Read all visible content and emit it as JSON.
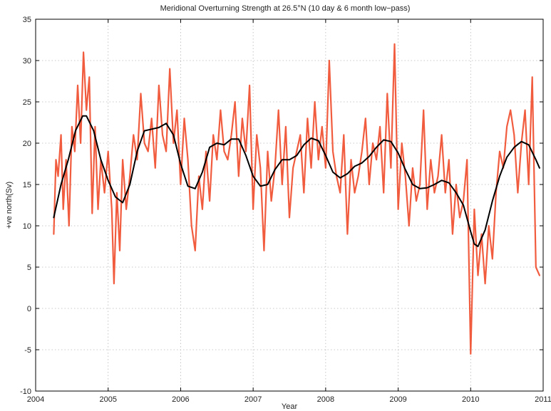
{
  "chart_data": {
    "type": "line",
    "title": "Meridional Overturning Strength at 26.5°N (10 day & 6 month low−pass)",
    "xlabel": "Year",
    "ylabel": "+ve north(Sv)",
    "xlim": [
      2004,
      2011
    ],
    "ylim": [
      -10,
      35
    ],
    "x_ticks": [
      "2004",
      "2005",
      "2006",
      "2007",
      "2008",
      "2009",
      "2010",
      "2011"
    ],
    "y_ticks": [
      "-10",
      "-5",
      "0",
      "5",
      "10",
      "15",
      "20",
      "25",
      "30",
      "35"
    ],
    "grid": true,
    "series": [
      {
        "style": "10-day",
        "color": "#f04a2a",
        "x": [
          2004.25,
          2004.28,
          2004.31,
          2004.35,
          2004.38,
          2004.42,
          2004.46,
          2004.5,
          2004.54,
          2004.58,
          2004.62,
          2004.66,
          2004.7,
          2004.74,
          2004.78,
          2004.82,
          2004.86,
          2004.9,
          2004.95,
          2005.0,
          2005.05,
          2005.08,
          2005.12,
          2005.16,
          2005.2,
          2005.25,
          2005.3,
          2005.35,
          2005.4,
          2005.45,
          2005.5,
          2005.55,
          2005.6,
          2005.65,
          2005.7,
          2005.75,
          2005.8,
          2005.85,
          2005.9,
          2005.95,
          2006.0,
          2006.05,
          2006.1,
          2006.15,
          2006.2,
          2006.25,
          2006.3,
          2006.35,
          2006.4,
          2006.45,
          2006.5,
          2006.55,
          2006.6,
          2006.65,
          2006.7,
          2006.75,
          2006.8,
          2006.85,
          2006.9,
          2006.95,
          2007.0,
          2007.05,
          2007.1,
          2007.15,
          2007.2,
          2007.25,
          2007.3,
          2007.35,
          2007.4,
          2007.45,
          2007.5,
          2007.55,
          2007.6,
          2007.65,
          2007.7,
          2007.75,
          2007.8,
          2007.85,
          2007.9,
          2007.95,
          2008.0,
          2008.05,
          2008.1,
          2008.15,
          2008.2,
          2008.25,
          2008.3,
          2008.35,
          2008.4,
          2008.45,
          2008.5,
          2008.55,
          2008.6,
          2008.65,
          2008.7,
          2008.75,
          2008.8,
          2008.85,
          2008.9,
          2008.95,
          2009.0,
          2009.05,
          2009.1,
          2009.15,
          2009.2,
          2009.25,
          2009.3,
          2009.35,
          2009.4,
          2009.45,
          2009.5,
          2009.55,
          2009.6,
          2009.65,
          2009.7,
          2009.75,
          2009.8,
          2009.85,
          2009.9,
          2009.95,
          2010.0,
          2010.05,
          2010.1,
          2010.15,
          2010.2,
          2010.25,
          2010.3,
          2010.35,
          2010.4,
          2010.45,
          2010.5,
          2010.55,
          2010.6,
          2010.65,
          2010.7,
          2010.75,
          2010.8,
          2010.85,
          2010.9,
          2010.95
        ],
        "y": [
          9,
          18,
          16,
          21,
          12,
          18,
          10,
          22,
          19,
          27,
          20,
          31,
          24,
          28,
          11.5,
          22,
          12,
          18,
          14,
          19,
          12,
          3,
          14,
          7,
          18,
          12,
          16,
          21,
          18,
          26,
          20,
          19,
          23,
          17,
          27,
          21,
          19,
          29,
          20,
          24,
          15,
          23,
          18,
          10,
          7,
          16,
          12,
          19,
          13,
          21,
          18,
          24,
          19,
          18,
          21,
          25,
          16,
          23,
          19,
          27,
          12,
          21,
          17,
          7,
          19,
          13,
          17,
          24,
          15,
          22,
          11,
          17,
          19,
          21,
          14,
          23,
          17,
          25,
          18,
          22,
          17,
          30,
          19,
          16,
          14,
          21,
          9,
          18,
          14,
          16,
          19,
          23,
          15,
          20,
          18,
          22,
          14,
          26,
          17,
          32,
          12,
          20,
          16,
          10,
          17,
          13,
          15,
          24,
          12,
          18,
          14,
          16,
          21,
          14,
          18,
          9,
          15,
          11,
          13,
          18,
          -5.5,
          12,
          4,
          9,
          3,
          10,
          6,
          14,
          19,
          17,
          22,
          24,
          21,
          14,
          20,
          24,
          15,
          28,
          5,
          4
        ]
      },
      {
        "style": "6-month low-pass",
        "color": "#000000",
        "x": [
          2004.25,
          2004.35,
          2004.45,
          2004.55,
          2004.65,
          2004.7,
          2004.8,
          2004.9,
          2005.0,
          2005.1,
          2005.2,
          2005.3,
          2005.4,
          2005.5,
          2005.6,
          2005.7,
          2005.8,
          2005.9,
          2006.0,
          2006.1,
          2006.2,
          2006.3,
          2006.4,
          2006.5,
          2006.6,
          2006.7,
          2006.8,
          2006.9,
          2007.0,
          2007.1,
          2007.2,
          2007.3,
          2007.4,
          2007.5,
          2007.6,
          2007.7,
          2007.8,
          2007.9,
          2008.0,
          2008.1,
          2008.2,
          2008.3,
          2008.4,
          2008.5,
          2008.6,
          2008.7,
          2008.8,
          2008.9,
          2009.0,
          2009.1,
          2009.2,
          2009.3,
          2009.4,
          2009.5,
          2009.6,
          2009.7,
          2009.8,
          2009.9,
          2010.0,
          2010.05,
          2010.1,
          2010.2,
          2010.3,
          2010.4,
          2010.5,
          2010.6,
          2010.7,
          2010.8,
          2010.9,
          2010.95
        ],
        "y": [
          11,
          15,
          18,
          21.5,
          23.3,
          23.3,
          21.5,
          18,
          15.5,
          13.5,
          12.8,
          15,
          19,
          21.5,
          21.7,
          21.9,
          22.4,
          21,
          17.5,
          14.8,
          14.5,
          16.5,
          19.5,
          20,
          19.8,
          20.5,
          20.5,
          18.5,
          16,
          14.8,
          15,
          16.8,
          18,
          18,
          18.5,
          19.8,
          20.6,
          20.3,
          18.5,
          16.5,
          15.8,
          16.3,
          17.2,
          17.6,
          18.4,
          19.5,
          20.4,
          20.2,
          18.8,
          16.8,
          15,
          14.5,
          14.6,
          15,
          15.5,
          15.2,
          14,
          12.5,
          9.3,
          7.8,
          7.5,
          9.5,
          13,
          16,
          18.3,
          19.5,
          20.2,
          19.8,
          18,
          17
        ]
      }
    ]
  }
}
